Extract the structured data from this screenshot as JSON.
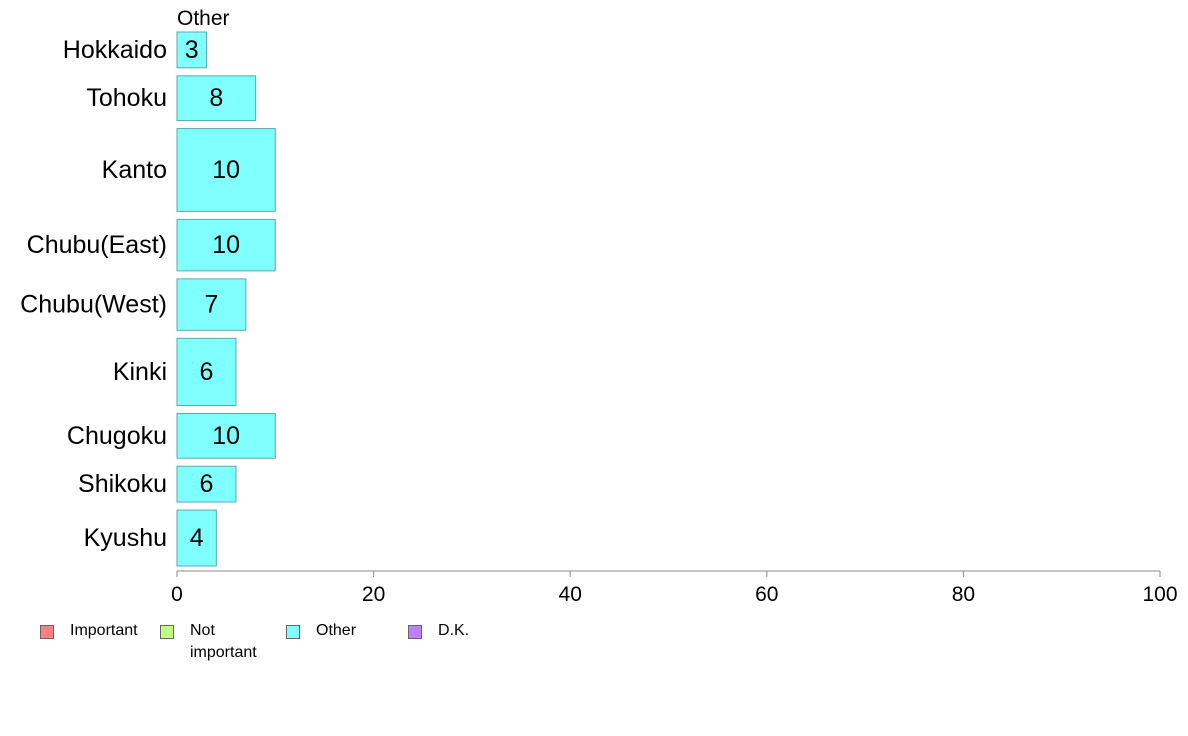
{
  "chart_data": {
    "type": "bar",
    "orientation": "horizontal",
    "title": "Other",
    "categories": [
      "Hokkaido",
      "Tohoku",
      "Kanto",
      "Chubu(East)",
      "Chubu(West)",
      "Kinki",
      "Chugoku",
      "Shikoku",
      "Kyushu"
    ],
    "values": [
      3,
      8,
      10,
      10,
      7,
      6,
      10,
      6,
      4
    ],
    "value_labels": [
      "3",
      "8",
      "10",
      "10",
      "7",
      "6",
      "10",
      "6",
      "4"
    ],
    "bar_thickness_relative": [
      0.8,
      1.0,
      1.85,
      1.15,
      1.15,
      1.5,
      1.0,
      0.8,
      1.25
    ],
    "xlim": [
      0,
      100
    ],
    "xticks": [
      0,
      20,
      40,
      60,
      80,
      100
    ],
    "xtick_labels": [
      "0",
      "20",
      "40",
      "60",
      "80",
      "100"
    ],
    "bar_color": "#80FFFF",
    "bar_edge_color": "#5fa8a8",
    "legend": [
      {
        "label": "Important",
        "color": "#FF8080"
      },
      {
        "label": "Not important",
        "color": "#C0FF80"
      },
      {
        "label": "Other",
        "color": "#80FFFF"
      },
      {
        "label": "D.K.",
        "color": "#BF80FF"
      }
    ],
    "legend_position": "bottom-left",
    "grid": false
  }
}
